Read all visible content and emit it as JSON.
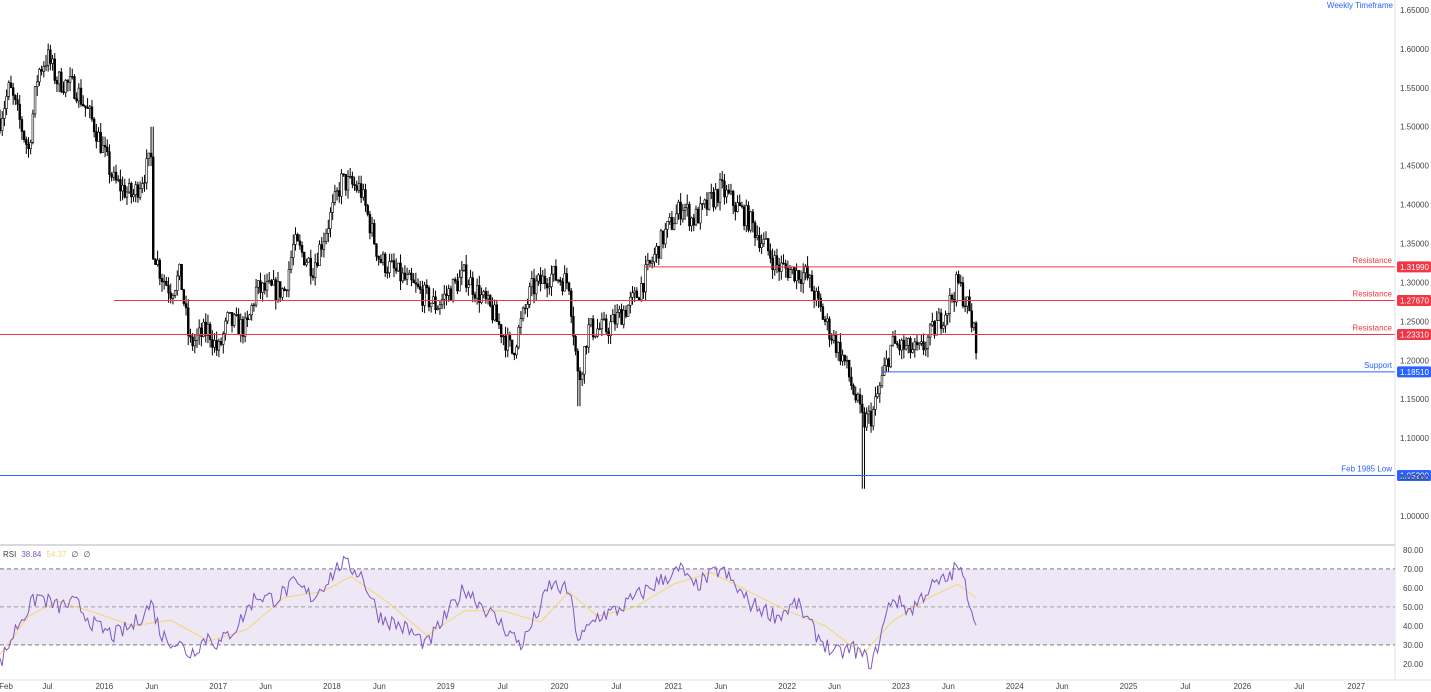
{
  "timeframe_label": "Weekly Timeframe",
  "colors": {
    "candle": "#000000",
    "resistance": "#f23645",
    "support": "#2962ff",
    "rsi_line": "#7e57c2",
    "rsi_ma": "#f5d76e",
    "rsi_band": "#ede7f6",
    "axis_text": "#444444"
  },
  "chart_data": [
    {
      "type": "candlestick",
      "title": "",
      "y_ticks": [
        "1.65000",
        "1.60000",
        "1.55000",
        "1.50000",
        "1.45000",
        "1.40000",
        "1.35000",
        "1.30000",
        "1.25000",
        "1.20000",
        "1.15000",
        "1.10000",
        "1.05000",
        "1.00000"
      ],
      "ylim": [
        0.982,
        1.655
      ],
      "x_ticks": [
        "Feb",
        "Jul",
        "2016",
        "Jun",
        "2017",
        "Jun",
        "2018",
        "Jun",
        "2019",
        "Jul",
        "2020",
        "Jul",
        "2021",
        "Jun",
        "2022",
        "Jun",
        "2023",
        "Jun",
        "2024",
        "Jun",
        "2025",
        "Jul",
        "2026",
        "Jul",
        "2027"
      ],
      "anchors": [
        [
          "2015-02",
          1.51
        ],
        [
          "2015-03",
          1.55
        ],
        [
          "2015-05",
          1.47
        ],
        [
          "2015-06",
          1.57
        ],
        [
          "2015-07",
          1.59
        ],
        [
          "2015-08",
          1.56
        ],
        [
          "2015-10",
          1.55
        ],
        [
          "2015-12",
          1.5
        ],
        [
          "2016-02",
          1.43
        ],
        [
          "2016-04",
          1.41
        ],
        [
          "2016-06",
          1.46
        ],
        [
          "2016-06",
          1.35
        ],
        [
          "2016-07",
          1.31
        ],
        [
          "2016-08",
          1.29
        ],
        [
          "2016-09",
          1.31
        ],
        [
          "2016-10",
          1.22
        ],
        [
          "2016-12",
          1.24
        ],
        [
          "2017-01",
          1.21
        ],
        [
          "2017-02",
          1.25
        ],
        [
          "2017-04",
          1.24
        ],
        [
          "2017-05",
          1.29
        ],
        [
          "2017-08",
          1.29
        ],
        [
          "2017-09",
          1.35
        ],
        [
          "2017-11",
          1.32
        ],
        [
          "2018-01",
          1.39
        ],
        [
          "2018-02",
          1.43
        ],
        [
          "2018-04",
          1.42
        ],
        [
          "2018-06",
          1.33
        ],
        [
          "2018-09",
          1.3
        ],
        [
          "2018-12",
          1.27
        ],
        [
          "2019-03",
          1.31
        ],
        [
          "2019-06",
          1.26
        ],
        [
          "2019-08",
          1.21
        ],
        [
          "2019-10",
          1.29
        ],
        [
          "2019-12",
          1.31
        ],
        [
          "2020-02",
          1.3
        ],
        [
          "2020-03",
          1.17
        ],
        [
          "2020-04",
          1.24
        ],
        [
          "2020-06",
          1.24
        ],
        [
          "2020-09",
          1.28
        ],
        [
          "2020-12",
          1.36
        ],
        [
          "2021-02",
          1.4
        ],
        [
          "2021-03",
          1.38
        ],
        [
          "2021-04",
          1.39
        ],
        [
          "2021-06",
          1.42
        ],
        [
          "2021-09",
          1.38
        ],
        [
          "2021-12",
          1.32
        ],
        [
          "2022-03",
          1.31
        ],
        [
          "2022-05",
          1.25
        ],
        [
          "2022-07",
          1.2
        ],
        [
          "2022-09",
          1.12
        ],
        [
          "2022-10",
          1.13
        ],
        [
          "2022-12",
          1.22
        ],
        [
          "2023-03",
          1.21
        ],
        [
          "2023-06",
          1.27
        ],
        [
          "2023-07",
          1.3
        ],
        [
          "2023-08",
          1.27
        ],
        [
          "2023-09",
          1.22
        ]
      ],
      "extremes": [
        [
          "2015-07",
          1.592,
          "high"
        ],
        [
          "2016-06",
          1.5,
          "high"
        ],
        [
          "2018-04",
          1.437,
          "high"
        ],
        [
          "2020-03",
          1.141,
          "low"
        ],
        [
          "2021-06",
          1.424,
          "high"
        ],
        [
          "2022-09",
          1.035,
          "low"
        ],
        [
          "2023-07",
          1.314,
          "high"
        ]
      ],
      "levels": [
        {
          "label": "Resistance",
          "price": 1.3199,
          "tag": "1.31990",
          "kind": "resistance",
          "from": "2020-10"
        },
        {
          "label": "Resistance",
          "price": 1.2767,
          "tag": "1.27670",
          "kind": "resistance",
          "from": "2016-02"
        },
        {
          "label": "Resistance",
          "price": 1.2331,
          "tag": "1.23310",
          "kind": "resistance",
          "from": "2015-02"
        },
        {
          "label": "Support",
          "price": 1.1851,
          "tag": "1.18510",
          "kind": "support",
          "from": "2022-11"
        },
        {
          "label": "Feb 1985 Low",
          "price": 1.052,
          "tag": "1.05200",
          "kind": "support",
          "from": "2015-02"
        }
      ]
    },
    {
      "type": "line",
      "title": "RSI",
      "legend_text": "RSI 38.84 54.37 ∅ ∅",
      "legend_items": [
        {
          "text": "RSI",
          "color": "#444444"
        },
        {
          "text": "38.84",
          "color": "#7e57c2"
        },
        {
          "text": "54.37",
          "color": "#f5d76e"
        },
        {
          "text": "∅",
          "color": "#444444"
        },
        {
          "text": "∅",
          "color": "#444444"
        }
      ],
      "y_ticks": [
        "80.00",
        "70.00",
        "60.00",
        "50.00",
        "40.00",
        "30.00",
        "20.00"
      ],
      "ylim": [
        12,
        81
      ],
      "band": [
        30,
        70
      ],
      "midline": 50,
      "series": [
        {
          "key": "rsi",
          "color": "#7e57c2",
          "anchors": [
            [
              "2015-02",
              20
            ],
            [
              "2015-04",
              42
            ],
            [
              "2015-06",
              56
            ],
            [
              "2015-08",
              50
            ],
            [
              "2015-10",
              52
            ],
            [
              "2015-12",
              40
            ],
            [
              "2016-02",
              35
            ],
            [
              "2016-04",
              40
            ],
            [
              "2016-06",
              52
            ],
            [
              "2016-07",
              35
            ],
            [
              "2016-09",
              30
            ],
            [
              "2016-10",
              25
            ],
            [
              "2016-12",
              35
            ],
            [
              "2017-01",
              30
            ],
            [
              "2017-03",
              40
            ],
            [
              "2017-05",
              56
            ],
            [
              "2017-07",
              54
            ],
            [
              "2017-09",
              62
            ],
            [
              "2017-11",
              55
            ],
            [
              "2018-02",
              73
            ],
            [
              "2018-04",
              68
            ],
            [
              "2018-06",
              45
            ],
            [
              "2018-09",
              38
            ],
            [
              "2018-11",
              30
            ],
            [
              "2019-01",
              45
            ],
            [
              "2019-03",
              60
            ],
            [
              "2019-05",
              50
            ],
            [
              "2019-07",
              40
            ],
            [
              "2019-09",
              30
            ],
            [
              "2019-11",
              50
            ],
            [
              "2019-12",
              62
            ],
            [
              "2020-02",
              58
            ],
            [
              "2020-03",
              32
            ],
            [
              "2020-05",
              45
            ],
            [
              "2020-07",
              48
            ],
            [
              "2020-09",
              55
            ],
            [
              "2020-12",
              65
            ],
            [
              "2021-02",
              70
            ],
            [
              "2021-03",
              60
            ],
            [
              "2021-06",
              70
            ],
            [
              "2021-09",
              52
            ],
            [
              "2021-12",
              45
            ],
            [
              "2022-02",
              52
            ],
            [
              "2022-04",
              36
            ],
            [
              "2022-06",
              25
            ],
            [
              "2022-08",
              28
            ],
            [
              "2022-10",
              20
            ],
            [
              "2022-12",
              55
            ],
            [
              "2023-02",
              48
            ],
            [
              "2023-04",
              60
            ],
            [
              "2023-06",
              65
            ],
            [
              "2023-07",
              72
            ],
            [
              "2023-08",
              58
            ],
            [
              "2023-09",
              38.84
            ]
          ]
        },
        {
          "key": "ma",
          "color": "#f5d76e",
          "anchors": [
            [
              "2015-02",
              25
            ],
            [
              "2015-05",
              45
            ],
            [
              "2015-08",
              53
            ],
            [
              "2015-12",
              47
            ],
            [
              "2016-04",
              40
            ],
            [
              "2016-08",
              43
            ],
            [
              "2016-12",
              32
            ],
            [
              "2017-04",
              38
            ],
            [
              "2017-08",
              55
            ],
            [
              "2017-12",
              58
            ],
            [
              "2018-03",
              66
            ],
            [
              "2018-07",
              52
            ],
            [
              "2018-11",
              35
            ],
            [
              "2019-03",
              48
            ],
            [
              "2019-07",
              48
            ],
            [
              "2019-11",
              42
            ],
            [
              "2020-02",
              58
            ],
            [
              "2020-05",
              45
            ],
            [
              "2020-09",
              50
            ],
            [
              "2021-01",
              62
            ],
            [
              "2021-05",
              68
            ],
            [
              "2021-09",
              58
            ],
            [
              "2022-01",
              48
            ],
            [
              "2022-05",
              40
            ],
            [
              "2022-09",
              25
            ],
            [
              "2022-12",
              42
            ],
            [
              "2023-04",
              55
            ],
            [
              "2023-07",
              62
            ],
            [
              "2023-09",
              54.37
            ]
          ]
        }
      ]
    }
  ]
}
